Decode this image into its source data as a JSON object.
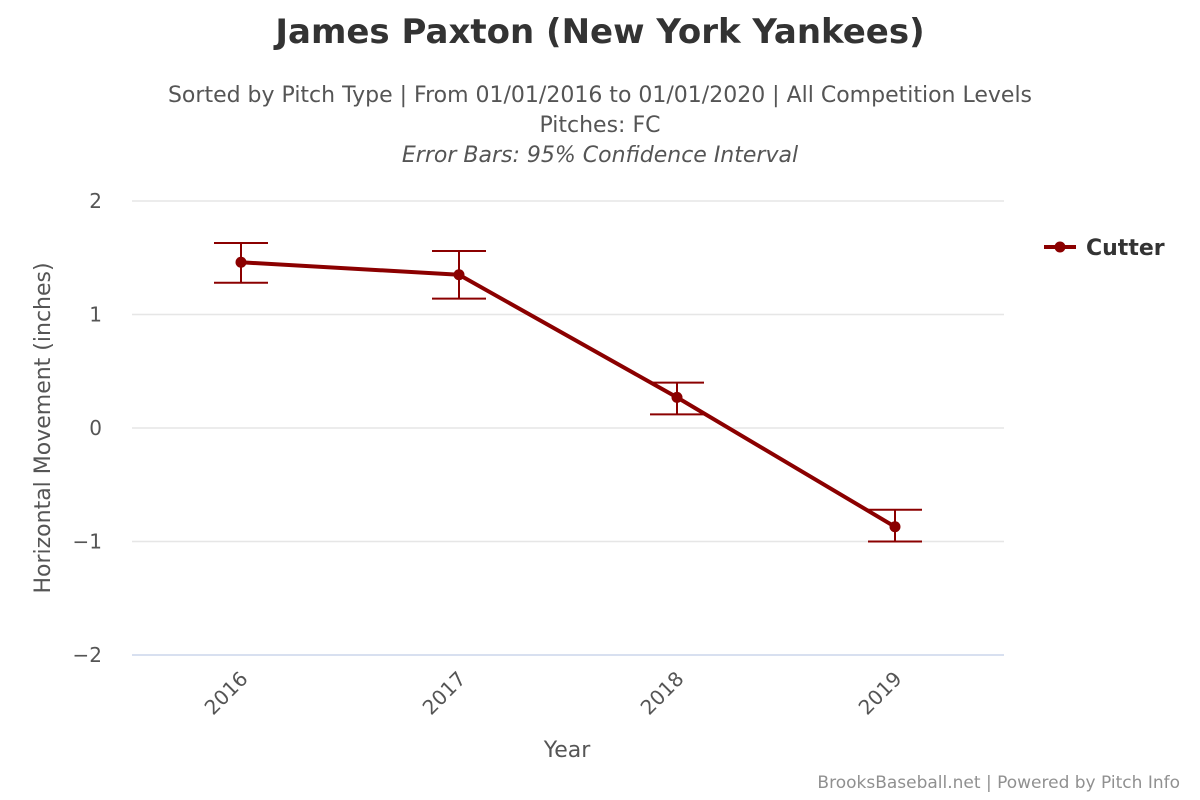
{
  "chart_data": {
    "type": "line",
    "title": "James Paxton (New York Yankees)",
    "subtitle_lines": [
      "Sorted by Pitch Type | From 01/01/2016 to 01/01/2020 | All Competition Levels",
      "Pitches: FC",
      "Error Bars: 95% Confidence Interval"
    ],
    "xlabel": "Year",
    "ylabel": "Horizontal Movement (inches)",
    "categories": [
      "2016",
      "2017",
      "2018",
      "2019"
    ],
    "ylim": [
      -2,
      2
    ],
    "yticks": [
      2,
      1,
      0,
      -1,
      -2
    ],
    "ytick_labels": [
      "2",
      "1",
      "0",
      "−1",
      "−2"
    ],
    "grid": true,
    "legend_position": "right",
    "series": [
      {
        "name": "Cutter",
        "color": "#8b0000",
        "values": [
          1.46,
          1.35,
          0.27,
          -0.87
        ],
        "error_low": [
          1.28,
          1.14,
          0.12,
          -1.0
        ],
        "error_high": [
          1.63,
          1.56,
          0.4,
          -0.72
        ]
      }
    ]
  },
  "credits": "BrooksBaseball.net | Powered by Pitch Info"
}
